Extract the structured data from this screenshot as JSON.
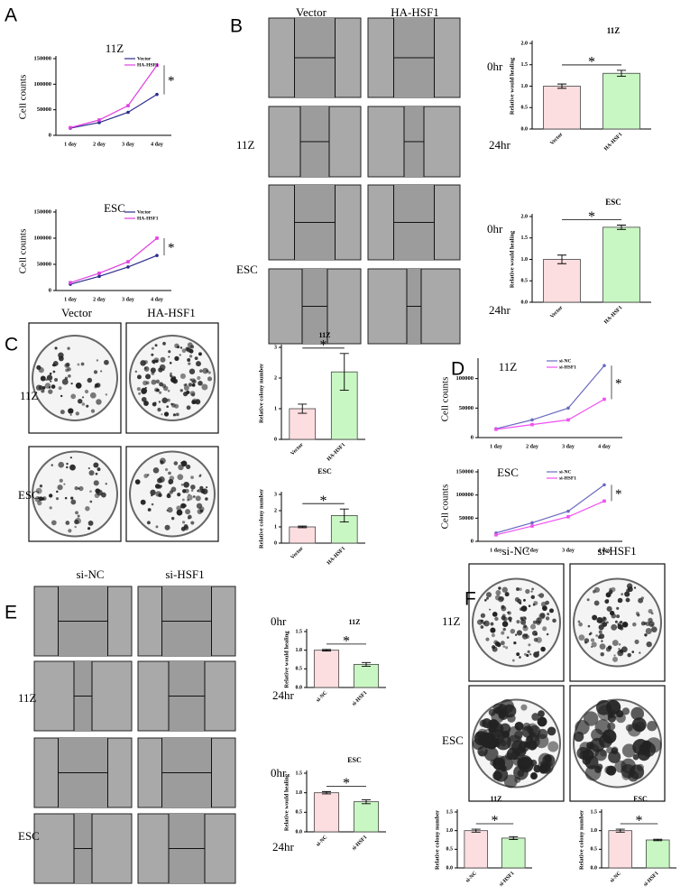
{
  "panels": [
    {
      "letter": "A"
    },
    {
      "letter": "B",
      "columns": [
        "Vector",
        "HA-HSF1"
      ],
      "rows": [
        "11Z",
        "ESC"
      ],
      "times": [
        "0hr",
        "24hr",
        "0hr",
        "24hr"
      ]
    },
    {
      "letter": "C",
      "columns": [
        "Vector",
        "HA-HSF1"
      ],
      "rows": [
        "11Z",
        "ESC"
      ]
    },
    {
      "letter": "D"
    },
    {
      "letter": "E",
      "columns": [
        "si-NC",
        "si-HSF1"
      ],
      "rows": [
        "11Z",
        "ESC"
      ],
      "times": [
        "0hr",
        "24hr",
        "0hr",
        "24hr"
      ]
    },
    {
      "letter": "F",
      "columns": [
        "si-NC",
        "si-HSF1"
      ],
      "rows": [
        "11Z",
        "ESC"
      ]
    }
  ],
  "chart_data": [
    {
      "type": "line",
      "title": "11Z",
      "ylabel": "Cell counts",
      "categories": [
        "1 day",
        "2 day",
        "3 day",
        "4 day"
      ],
      "series": [
        {
          "name": "Vector",
          "color": "#2b2b8c",
          "values": [
            14000,
            25000,
            45000,
            80000
          ]
        },
        {
          "name": "HA-HSF1",
          "color": "#e040e0",
          "values": [
            15000,
            30000,
            58000,
            137000
          ]
        }
      ],
      "ylim": [
        0,
        150000
      ],
      "yticks": [
        0,
        50000,
        100000,
        150000
      ],
      "annotation": "*"
    },
    {
      "type": "line",
      "title": "ESC",
      "ylabel": "Cell counts",
      "categories": [
        "1 day",
        "2 day",
        "3 day",
        "4 day"
      ],
      "series": [
        {
          "name": "Vector",
          "color": "#2b2b8c",
          "values": [
            12000,
            27000,
            45000,
            67000
          ]
        },
        {
          "name": "HA-HSF1",
          "color": "#e040e0",
          "values": [
            15000,
            33000,
            55000,
            100000
          ]
        }
      ],
      "ylim": [
        0,
        150000
      ],
      "yticks": [
        0,
        50000,
        100000,
        150000
      ],
      "annotation": "*"
    },
    {
      "type": "bar",
      "title": "11Z",
      "ylabel": "Relative would healing",
      "categories": [
        "Vector",
        "HA-HSF1"
      ],
      "values": [
        1.0,
        1.3
      ],
      "errors": [
        0.05,
        0.07
      ],
      "colors": [
        "#fcdde0",
        "#c9f7c3"
      ],
      "ylim": [
        0,
        2
      ],
      "yticks": [
        {
          "value": 0,
          "label": "0.0"
        },
        {
          "value": 0.5,
          "label": "0.5"
        },
        {
          "value": 1,
          "label": "1.0"
        },
        {
          "value": 1.5,
          "label": "1.5"
        },
        {
          "value": 2,
          "label": "2.0"
        }
      ],
      "annotation": "*"
    },
    {
      "type": "bar",
      "title": "ESC",
      "ylabel": "Relative would healing",
      "categories": [
        "Vector",
        "HA-HSF1"
      ],
      "values": [
        1.0,
        1.75
      ],
      "errors": [
        0.1,
        0.05
      ],
      "colors": [
        "#fcdde0",
        "#c9f7c3"
      ],
      "ylim": [
        0,
        2
      ],
      "yticks": [
        {
          "value": 0,
          "label": "0.0"
        },
        {
          "value": 0.5,
          "label": "0.5"
        },
        {
          "value": 1,
          "label": "1.0"
        },
        {
          "value": 1.5,
          "label": "1.5"
        },
        {
          "value": 2,
          "label": "2.0"
        }
      ],
      "annotation": "*"
    },
    {
      "type": "bar",
      "title": "11Z",
      "ylabel": "Relative colony number",
      "categories": [
        "Vector",
        "HA-HSF1"
      ],
      "values": [
        1.0,
        2.2
      ],
      "errors": [
        0.15,
        0.6
      ],
      "colors": [
        "#fcdde0",
        "#c9f7c3"
      ],
      "ylim": [
        0,
        3
      ],
      "yticks": [
        0,
        1,
        2,
        3
      ],
      "annotation": "*"
    },
    {
      "type": "bar",
      "title": "ESC",
      "ylabel": "Relative colony number",
      "categories": [
        "Vector",
        "HA-HSF1"
      ],
      "values": [
        1.0,
        1.7
      ],
      "errors": [
        0.05,
        0.4
      ],
      "colors": [
        "#fcdde0",
        "#c9f7c3"
      ],
      "ylim": [
        0,
        3
      ],
      "yticks": [
        0,
        1,
        2,
        3
      ],
      "annotation": "*"
    },
    {
      "type": "line",
      "title": "11Z",
      "ylabel": "Cell counts",
      "categories": [
        "1 day",
        "2 day",
        "3 day",
        "4 day"
      ],
      "series": [
        {
          "name": "si-NC",
          "color": "#6a6ac0",
          "values": [
            15000,
            30000,
            50000,
            122000
          ]
        },
        {
          "name": "si-HSF1",
          "color": "#f050f0",
          "values": [
            14000,
            22000,
            30000,
            65000
          ]
        }
      ],
      "ylim": [
        0,
        130000
      ],
      "yticks": [
        0,
        50000,
        100000
      ],
      "annotation": "*"
    },
    {
      "type": "line",
      "title": "ESC",
      "ylabel": "Cell counts",
      "categories": [
        "1 day",
        "2 day",
        "3 day",
        "4 day"
      ],
      "series": [
        {
          "name": "si-NC",
          "color": "#6a6ac0",
          "values": [
            18000,
            40000,
            65000,
            122000
          ]
        },
        {
          "name": "si-HSF1",
          "color": "#f050f0",
          "values": [
            14000,
            33000,
            53000,
            87000
          ]
        }
      ],
      "ylim": [
        0,
        150000
      ],
      "yticks": [
        0,
        50000,
        100000,
        150000
      ],
      "annotation": "*"
    },
    {
      "type": "bar",
      "title": "11Z",
      "ylabel": "Relative would healing",
      "categories": [
        "si-NC",
        "si-HSF1"
      ],
      "values": [
        1.0,
        0.62
      ],
      "errors": [
        0.02,
        0.05
      ],
      "colors": [
        "#fcdde0",
        "#c9f7c3"
      ],
      "ylim": [
        0,
        1.5
      ],
      "yticks": [
        {
          "value": 0,
          "label": "0.0"
        },
        {
          "value": 0.5,
          "label": "0.5"
        },
        {
          "value": 1,
          "label": "1.0"
        },
        {
          "value": 1.5,
          "label": "1.5"
        }
      ],
      "annotation": "*"
    },
    {
      "type": "bar",
      "title": "ESC",
      "ylabel": "Relative would healing",
      "categories": [
        "si-NC",
        "si-HSF1"
      ],
      "values": [
        1.0,
        0.77
      ],
      "errors": [
        0.03,
        0.05
      ],
      "colors": [
        "#fcdde0",
        "#c9f7c3"
      ],
      "ylim": [
        0,
        1.5
      ],
      "yticks": [
        {
          "value": 0,
          "label": "0.0"
        },
        {
          "value": 0.5,
          "label": "0.5"
        },
        {
          "value": 1,
          "label": "1.0"
        },
        {
          "value": 1.5,
          "label": "1.5"
        }
      ],
      "annotation": "*"
    },
    {
      "type": "bar",
      "title": "11Z",
      "ylabel": "Relative colony number",
      "categories": [
        "si-NC",
        "si-HSF1"
      ],
      "values": [
        1.0,
        0.8
      ],
      "errors": [
        0.04,
        0.04
      ],
      "colors": [
        "#fcdde0",
        "#c9f7c3"
      ],
      "ylim": [
        0,
        1.5
      ],
      "yticks": [
        {
          "value": 0,
          "label": "0.0"
        },
        {
          "value": 0.5,
          "label": "0.5"
        },
        {
          "value": 1,
          "label": "1.0"
        },
        {
          "value": 1.5,
          "label": "1.5"
        }
      ],
      "annotation": "*"
    },
    {
      "type": "bar",
      "title": "ESC",
      "ylabel": "Relative colony number",
      "categories": [
        "si-NC",
        "si-HSF1"
      ],
      "values": [
        1.0,
        0.75
      ],
      "errors": [
        0.04,
        0.02
      ],
      "colors": [
        "#fcdde0",
        "#c9f7c3"
      ],
      "ylim": [
        0,
        1.5
      ],
      "yticks": [
        {
          "value": 0,
          "label": "0.0"
        },
        {
          "value": 0.5,
          "label": "0.5"
        },
        {
          "value": 1,
          "label": "1.0"
        },
        {
          "value": 1.5,
          "label": "1.5"
        }
      ],
      "annotation": "*"
    }
  ]
}
